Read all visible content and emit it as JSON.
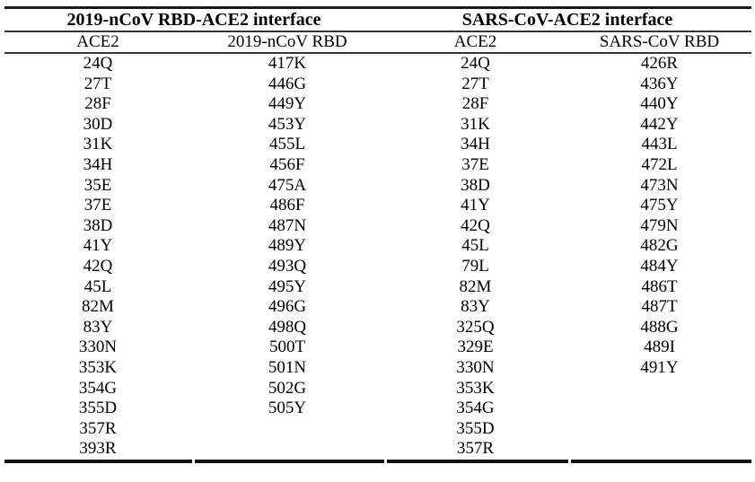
{
  "table": {
    "sections": [
      {
        "title": "2019-nCoV RBD-ACE2 interface",
        "columns": [
          "ACE2",
          "2019-nCoV RBD"
        ]
      },
      {
        "title": "SARS-CoV-ACE2 interface",
        "columns": [
          "ACE2",
          "SARS-CoV RBD"
        ]
      }
    ],
    "rows_by_column": [
      [
        "24Q",
        "27T",
        "28F",
        "30D",
        "31K",
        "34H",
        "35E",
        "37E",
        "38D",
        "41Y",
        "42Q",
        "45L",
        "82M",
        "83Y",
        "330N",
        "353K",
        "354G",
        "355D",
        "357R",
        "393R"
      ],
      [
        "417K",
        "446G",
        "449Y",
        "453Y",
        "455L",
        "456F",
        "475A",
        "486F",
        "487N",
        "489Y",
        "493Q",
        "495Y",
        "496G",
        "498Q",
        "500T",
        "501N",
        "502G",
        "505Y"
      ],
      [
        "24Q",
        "27T",
        "28F",
        "31K",
        "34H",
        "37E",
        "38D",
        "41Y",
        "42Q",
        "45L",
        "79L",
        "82M",
        "83Y",
        "325Q",
        "329E",
        "330N",
        "353K",
        "354G",
        "355D",
        "357R"
      ],
      [
        "426R",
        "436Y",
        "440Y",
        "442Y",
        "443L",
        "472L",
        "473N",
        "475Y",
        "479N",
        "482G",
        "484Y",
        "486T",
        "487T",
        "488G",
        "489I",
        "491Y"
      ]
    ]
  },
  "colors": {
    "text": "#000000",
    "rule_heavy": "#1a1a1a",
    "rule_light": "#363636",
    "background": "#ffffff"
  }
}
